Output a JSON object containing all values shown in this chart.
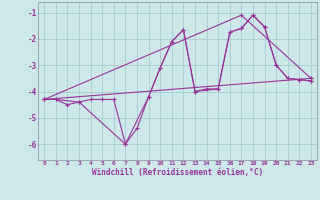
{
  "bg_color": "#cce8e8",
  "grid_color": "#aacccc",
  "line_color": "#993399",
  "xlabel": "Windchill (Refroidissement éolien,°C)",
  "xlim": [
    -0.5,
    23.5
  ],
  "ylim": [
    -6.6,
    -0.6
  ],
  "yticks": [
    -6,
    -5,
    -4,
    -3,
    -2,
    -1
  ],
  "xticks": [
    0,
    1,
    2,
    3,
    4,
    5,
    6,
    7,
    8,
    9,
    10,
    11,
    12,
    13,
    14,
    15,
    16,
    17,
    18,
    19,
    20,
    21,
    22,
    23
  ],
  "lines": [
    {
      "x": [
        0,
        1,
        2,
        3,
        4,
        5,
        6,
        7,
        8,
        9,
        10,
        11,
        12,
        13,
        14,
        15,
        16,
        17,
        18,
        19,
        20,
        21,
        22,
        23
      ],
      "y": [
        -4.3,
        -4.3,
        -4.5,
        -4.4,
        -4.3,
        -4.3,
        -4.3,
        -6.0,
        -5.4,
        -4.2,
        -3.1,
        -2.1,
        -1.65,
        -4.0,
        -3.9,
        -3.9,
        -1.75,
        -1.6,
        -1.1,
        -1.55,
        -3.0,
        -3.5,
        -3.55,
        -3.6
      ]
    },
    {
      "x": [
        0,
        1,
        3,
        7,
        9,
        10,
        11,
        12,
        13,
        15,
        16,
        17,
        18,
        19,
        20,
        21,
        22,
        23
      ],
      "y": [
        -4.3,
        -4.3,
        -4.4,
        -6.0,
        -4.2,
        -3.1,
        -2.1,
        -1.65,
        -4.0,
        -3.9,
        -1.75,
        -1.6,
        -1.1,
        -1.55,
        -3.0,
        -3.5,
        -3.55,
        -3.6
      ]
    },
    {
      "x": [
        0,
        23
      ],
      "y": [
        -4.3,
        -3.5
      ]
    },
    {
      "x": [
        0,
        17,
        23
      ],
      "y": [
        -4.3,
        -1.1,
        -3.5
      ]
    }
  ]
}
